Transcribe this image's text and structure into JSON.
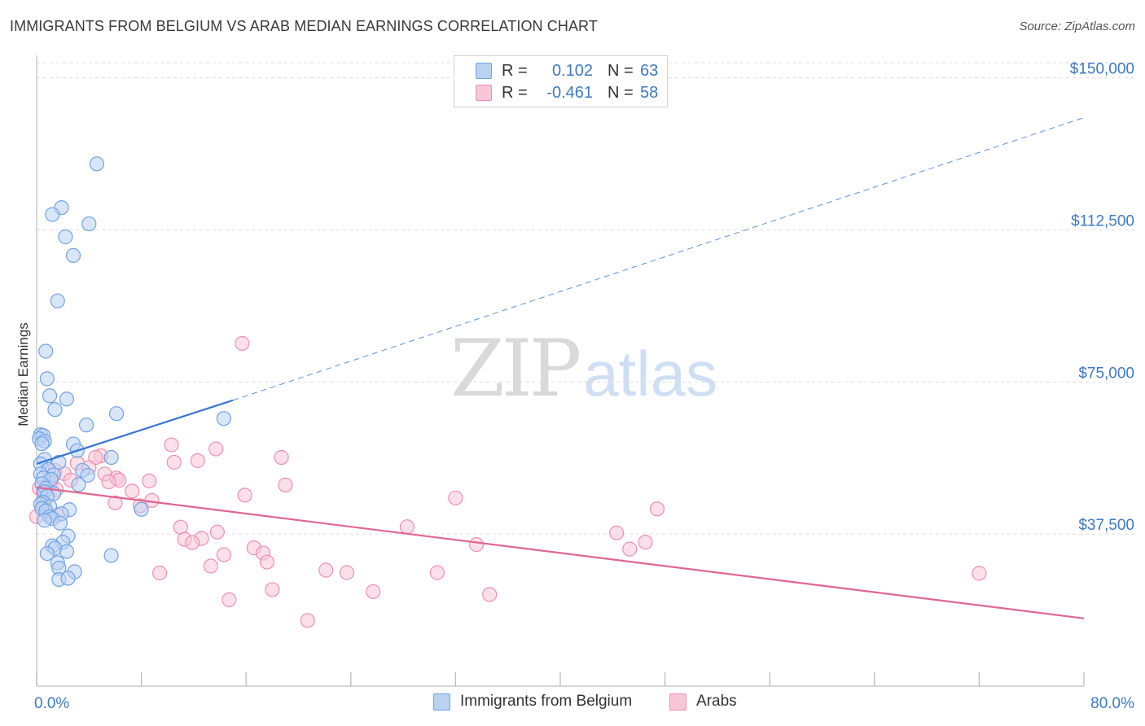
{
  "title": "IMMIGRANTS FROM BELGIUM VS ARAB MEDIAN EARNINGS CORRELATION CHART",
  "source": "Source: ZipAtlas.com",
  "watermark": {
    "zip": "ZIP",
    "atlas": "atlas"
  },
  "colors": {
    "blue": "#6fa3e6",
    "blue_fill": "#b9d2f2",
    "blue_line": "#3575d3",
    "pink": "#ee8fb0",
    "pink_fill": "#f7c7d7",
    "pink_line": "#e0668f",
    "axis_text": "#3d78c7",
    "grid": "#dddddd"
  },
  "legend_top": [
    {
      "label": "R =",
      "r": "0.102",
      "n_label": "N =",
      "n": "63",
      "color": "blue"
    },
    {
      "label": "R =",
      "r": "-0.461",
      "n_label": "N =",
      "n": "58",
      "color": "pink"
    }
  ],
  "legend_bottom": [
    {
      "label": "Immigrants from Belgium",
      "color": "blue"
    },
    {
      "label": "Arabs",
      "color": "pink"
    }
  ],
  "chart_data": {
    "type": "scatter",
    "title": "IMMIGRANTS FROM BELGIUM VS ARAB MEDIAN EARNINGS CORRELATION CHART",
    "xlabel": "",
    "ylabel": "Median Earnings",
    "xlim": [
      0,
      80
    ],
    "ylim": [
      0,
      153750
    ],
    "x_tick_labels": {
      "left": "0.0%",
      "right": "80.0%"
    },
    "y_ticks": [
      {
        "value": 37500,
        "label": "$37,500"
      },
      {
        "value": 75000,
        "label": "$75,000"
      },
      {
        "value": 112500,
        "label": "$112,500"
      },
      {
        "value": 150000,
        "label": "$150,000"
      }
    ],
    "series": [
      {
        "name": "Immigrants from Belgium",
        "color": "blue",
        "r": 0.102,
        "n": 63,
        "trend": {
          "x_start": 0.0,
          "y_start": 54800,
          "x_solid_end": 15.0,
          "y_solid_end": 70500,
          "x_end": 80.0,
          "y_end": 140200
        },
        "points": [
          [
            4.6,
            128800
          ],
          [
            1.9,
            118000
          ],
          [
            1.2,
            116300
          ],
          [
            4.0,
            114000
          ],
          [
            2.2,
            110800
          ],
          [
            2.8,
            106200
          ],
          [
            1.6,
            95000
          ],
          [
            0.7,
            82600
          ],
          [
            0.8,
            75800
          ],
          [
            1.0,
            71600
          ],
          [
            2.3,
            70800
          ],
          [
            1.4,
            68200
          ],
          [
            6.1,
            67200
          ],
          [
            14.3,
            66000
          ],
          [
            3.8,
            64400
          ],
          [
            0.3,
            62000
          ],
          [
            0.5,
            61800
          ],
          [
            0.2,
            61000
          ],
          [
            0.6,
            60400
          ],
          [
            0.4,
            59800
          ],
          [
            2.8,
            59700
          ],
          [
            3.1,
            58100
          ],
          [
            5.7,
            56400
          ],
          [
            0.6,
            55900
          ],
          [
            1.7,
            55200
          ],
          [
            0.3,
            54800
          ],
          [
            0.9,
            53400
          ],
          [
            3.5,
            53200
          ],
          [
            0.3,
            52300
          ],
          [
            1.3,
            52100
          ],
          [
            3.9,
            52000
          ],
          [
            0.5,
            51300
          ],
          [
            1.1,
            51000
          ],
          [
            0.4,
            49900
          ],
          [
            3.2,
            49700
          ],
          [
            0.7,
            48800
          ],
          [
            0.6,
            47900
          ],
          [
            1.3,
            47500
          ],
          [
            0.8,
            46800
          ],
          [
            0.5,
            45300
          ],
          [
            0.3,
            44900
          ],
          [
            1.0,
            44300
          ],
          [
            0.4,
            43800
          ],
          [
            2.5,
            43500
          ],
          [
            8.0,
            43600
          ],
          [
            0.7,
            43200
          ],
          [
            1.9,
            42500
          ],
          [
            1.0,
            41800
          ],
          [
            1.2,
            41300
          ],
          [
            0.6,
            40900
          ],
          [
            1.8,
            40200
          ],
          [
            2.4,
            37000
          ],
          [
            2.0,
            35500
          ],
          [
            1.2,
            34600
          ],
          [
            1.4,
            34000
          ],
          [
            2.3,
            33200
          ],
          [
            0.8,
            32700
          ],
          [
            5.7,
            32200
          ],
          [
            1.6,
            30400
          ],
          [
            1.7,
            29100
          ],
          [
            2.9,
            28200
          ],
          [
            1.7,
            26300
          ],
          [
            2.4,
            26600
          ]
        ]
      },
      {
        "name": "Arabs",
        "color": "pink",
        "r": -0.461,
        "n": 58,
        "trend": {
          "x_start": 0.0,
          "y_start": 49000,
          "x_end": 80.0,
          "y_end": 16700
        },
        "points": [
          [
            15.7,
            84500
          ],
          [
            10.3,
            59500
          ],
          [
            13.7,
            58500
          ],
          [
            18.7,
            56400
          ],
          [
            4.9,
            56800
          ],
          [
            4.5,
            56400
          ],
          [
            3.1,
            55000
          ],
          [
            10.5,
            55200
          ],
          [
            12.3,
            55600
          ],
          [
            4.0,
            53900
          ],
          [
            1.4,
            53200
          ],
          [
            2.1,
            52400
          ],
          [
            5.2,
            52300
          ],
          [
            6.1,
            51300
          ],
          [
            6.3,
            50800
          ],
          [
            2.6,
            50800
          ],
          [
            8.6,
            50600
          ],
          [
            5.5,
            50400
          ],
          [
            1.1,
            50200
          ],
          [
            19.0,
            49600
          ],
          [
            0.2,
            48800
          ],
          [
            1.5,
            48500
          ],
          [
            7.3,
            48100
          ],
          [
            0.5,
            47600
          ],
          [
            15.9,
            47100
          ],
          [
            32.0,
            46400
          ],
          [
            8.8,
            45800
          ],
          [
            6.0,
            45200
          ],
          [
            0.6,
            44900
          ],
          [
            7.9,
            44500
          ],
          [
            47.4,
            43700
          ],
          [
            1.6,
            42200
          ],
          [
            28.3,
            39300
          ],
          [
            11.0,
            39200
          ],
          [
            13.8,
            38000
          ],
          [
            44.3,
            37800
          ],
          [
            11.3,
            36200
          ],
          [
            12.6,
            36400
          ],
          [
            11.9,
            35400
          ],
          [
            46.5,
            35500
          ],
          [
            33.6,
            34900
          ],
          [
            16.6,
            34100
          ],
          [
            45.3,
            33800
          ],
          [
            17.3,
            32800
          ],
          [
            14.3,
            32400
          ],
          [
            17.6,
            30600
          ],
          [
            13.3,
            29600
          ],
          [
            22.1,
            28600
          ],
          [
            23.7,
            28000
          ],
          [
            9.4,
            27900
          ],
          [
            30.6,
            28000
          ],
          [
            72.0,
            27800
          ],
          [
            18.0,
            23800
          ],
          [
            25.7,
            23300
          ],
          [
            34.6,
            22600
          ],
          [
            14.7,
            21300
          ],
          [
            20.7,
            16200
          ],
          [
            0.0,
            41800
          ]
        ]
      }
    ]
  }
}
